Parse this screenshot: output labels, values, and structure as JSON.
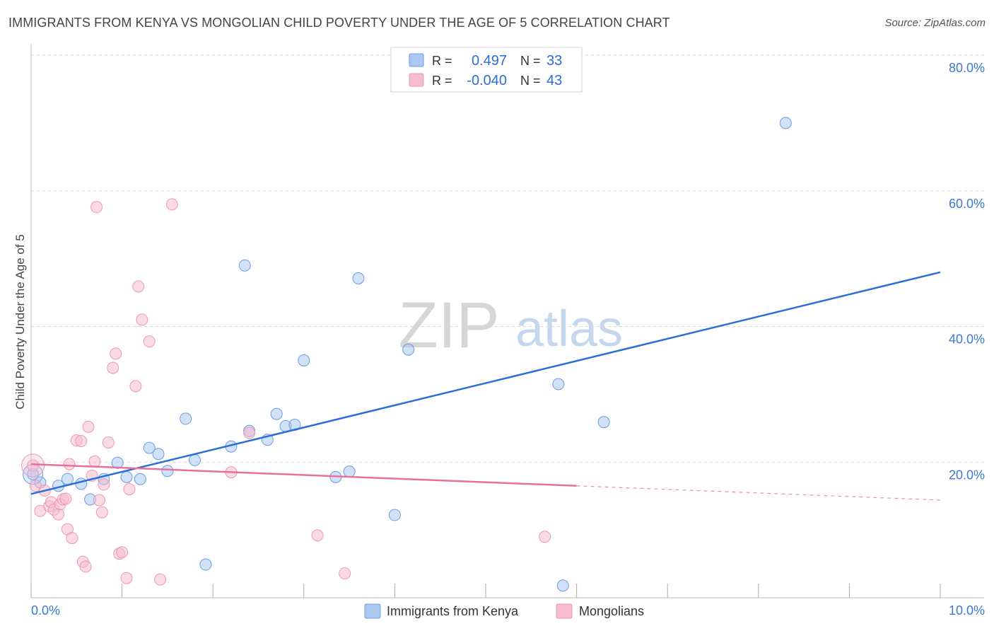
{
  "title": "IMMIGRANTS FROM KENYA VS MONGOLIAN CHILD POVERTY UNDER THE AGE OF 5 CORRELATION CHART",
  "source": "Source: ZipAtlas.com",
  "watermark": {
    "zip": "ZIP",
    "atlas": "atlas"
  },
  "colors": {
    "blue": "#2b6fd6",
    "blue_fill": "#aac8f2",
    "blue_stroke": "#6c9be0",
    "pink": "#e8709a",
    "pink_fill": "#f6bcd0",
    "pink_stroke": "#ec97b6",
    "tick_label": "#3b78d4",
    "grid": "#d8d8d8"
  },
  "legend_stats": [
    {
      "r_label": "R =",
      "r_value": "0.497",
      "n_label": "N =",
      "n_value": "33"
    },
    {
      "r_label": "R =",
      "r_value": "-0.040",
      "n_label": "N =",
      "n_value": "43"
    }
  ],
  "chart_data": {
    "type": "scatter",
    "title": "IMMIGRANTS FROM KENYA VS MONGOLIAN CHILD POVERTY UNDER THE AGE OF 5 CORRELATION CHART",
    "xlabel": "",
    "ylabel": "Child Poverty Under the Age of 5",
    "xlim": [
      0,
      10
    ],
    "ylim": [
      0,
      80
    ],
    "x_tick_labels": [
      "0.0%",
      "10.0%"
    ],
    "y_ticks": [
      20,
      40,
      60,
      80
    ],
    "y_tick_labels": [
      "20.0%",
      "40.0%",
      "60.0%",
      "80.0%"
    ],
    "series": [
      {
        "name": "Immigrants from Kenya",
        "r": 0.497,
        "n": 33,
        "trend": {
          "x": [
            0.0,
            10.0
          ],
          "y": [
            15.3,
            48.0
          ]
        },
        "points": [
          {
            "x": 0.02,
            "y": 18.2
          },
          {
            "x": 0.1,
            "y": 17.0
          },
          {
            "x": 0.3,
            "y": 16.5
          },
          {
            "x": 0.4,
            "y": 17.5
          },
          {
            "x": 0.55,
            "y": 16.8
          },
          {
            "x": 0.65,
            "y": 14.5
          },
          {
            "x": 0.8,
            "y": 17.5
          },
          {
            "x": 0.95,
            "y": 19.9
          },
          {
            "x": 1.05,
            "y": 17.8
          },
          {
            "x": 1.2,
            "y": 17.5
          },
          {
            "x": 1.3,
            "y": 22.1
          },
          {
            "x": 1.4,
            "y": 21.2
          },
          {
            "x": 1.5,
            "y": 18.7
          },
          {
            "x": 1.7,
            "y": 26.4
          },
          {
            "x": 1.8,
            "y": 20.3
          },
          {
            "x": 1.92,
            "y": 4.9
          },
          {
            "x": 2.2,
            "y": 22.3
          },
          {
            "x": 2.35,
            "y": 49.0
          },
          {
            "x": 2.4,
            "y": 24.6
          },
          {
            "x": 2.6,
            "y": 23.3
          },
          {
            "x": 2.7,
            "y": 27.1
          },
          {
            "x": 2.8,
            "y": 25.3
          },
          {
            "x": 2.9,
            "y": 25.5
          },
          {
            "x": 3.0,
            "y": 35.0
          },
          {
            "x": 3.35,
            "y": 17.8
          },
          {
            "x": 3.5,
            "y": 18.6
          },
          {
            "x": 3.6,
            "y": 47.1
          },
          {
            "x": 4.0,
            "y": 12.2
          },
          {
            "x": 4.15,
            "y": 36.6
          },
          {
            "x": 5.8,
            "y": 31.5
          },
          {
            "x": 5.85,
            "y": 1.8
          },
          {
            "x": 6.3,
            "y": 25.9
          },
          {
            "x": 8.3,
            "y": 70.0
          }
        ]
      },
      {
        "name": "Mongolians",
        "r": -0.04,
        "n": 43,
        "trend": {
          "x": [
            0.0,
            6.0
          ],
          "y": [
            19.7,
            16.5
          ]
        },
        "trend_dashed": {
          "x": [
            6.0,
            10.0
          ],
          "y": [
            16.5,
            14.4
          ]
        },
        "points": [
          {
            "x": 0.02,
            "y": 19.5
          },
          {
            "x": 0.05,
            "y": 16.5
          },
          {
            "x": 0.1,
            "y": 12.8
          },
          {
            "x": 0.15,
            "y": 15.8
          },
          {
            "x": 0.2,
            "y": 13.5
          },
          {
            "x": 0.22,
            "y": 14.1
          },
          {
            "x": 0.25,
            "y": 13.0
          },
          {
            "x": 0.3,
            "y": 12.3
          },
          {
            "x": 0.32,
            "y": 13.8
          },
          {
            "x": 0.35,
            "y": 14.5
          },
          {
            "x": 0.38,
            "y": 14.6
          },
          {
            "x": 0.4,
            "y": 10.1
          },
          {
            "x": 0.42,
            "y": 19.7
          },
          {
            "x": 0.45,
            "y": 8.8
          },
          {
            "x": 0.5,
            "y": 23.2
          },
          {
            "x": 0.55,
            "y": 23.1
          },
          {
            "x": 0.57,
            "y": 5.3
          },
          {
            "x": 0.6,
            "y": 4.6
          },
          {
            "x": 0.63,
            "y": 25.2
          },
          {
            "x": 0.67,
            "y": 18.0
          },
          {
            "x": 0.7,
            "y": 20.1
          },
          {
            "x": 0.72,
            "y": 57.6
          },
          {
            "x": 0.75,
            "y": 14.4
          },
          {
            "x": 0.78,
            "y": 12.6
          },
          {
            "x": 0.8,
            "y": 16.7
          },
          {
            "x": 0.85,
            "y": 22.9
          },
          {
            "x": 0.9,
            "y": 33.9
          },
          {
            "x": 0.93,
            "y": 36.0
          },
          {
            "x": 0.97,
            "y": 6.5
          },
          {
            "x": 1.0,
            "y": 6.7
          },
          {
            "x": 1.05,
            "y": 2.9
          },
          {
            "x": 1.08,
            "y": 16.0
          },
          {
            "x": 1.15,
            "y": 31.2
          },
          {
            "x": 1.18,
            "y": 45.9
          },
          {
            "x": 1.22,
            "y": 41.0
          },
          {
            "x": 1.3,
            "y": 37.8
          },
          {
            "x": 1.42,
            "y": 2.7
          },
          {
            "x": 1.55,
            "y": 58.0
          },
          {
            "x": 2.2,
            "y": 18.5
          },
          {
            "x": 2.4,
            "y": 24.3
          },
          {
            "x": 3.15,
            "y": 9.2
          },
          {
            "x": 3.45,
            "y": 3.6
          },
          {
            "x": 5.65,
            "y": 9.0
          }
        ]
      }
    ],
    "legend": [
      "Immigrants from Kenya",
      "Mongolians"
    ],
    "legend_position": "bottom-center",
    "grid": true
  }
}
